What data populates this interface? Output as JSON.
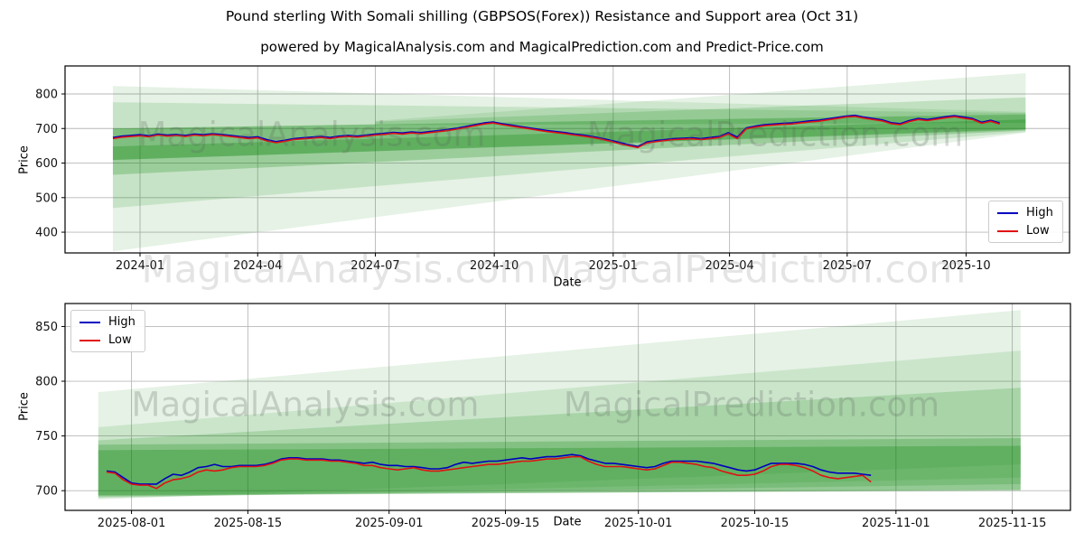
{
  "title": "Pound sterling With Somali shilling (GBPSOS(Forex)) Resistance and Support area (Oct 31)",
  "subtitle": "powered by MagicalAnalysis.com and MagicalPrediction.com and Predict-Price.com",
  "watermarks": {
    "analysis": "MagicalAnalysis.com",
    "prediction": "MagicalPrediction.com"
  },
  "legend": {
    "high": "High",
    "low": "Low"
  },
  "colors": {
    "high": "#0000bf",
    "low": "#e01212",
    "band": "#008000",
    "grid": "#b8b8b8",
    "axis": "#000000",
    "tick_text": "#111111"
  },
  "chart_data": [
    {
      "type": "line",
      "name": "overview-chart",
      "xlabel": "Date",
      "ylabel": "Price",
      "x_domain": [
        "2023-11-04",
        "2025-12-20"
      ],
      "y_domain": [
        340,
        881
      ],
      "x_tick_dates": [
        "2024-01-01",
        "2024-04-01",
        "2024-07-01",
        "2024-10-01",
        "2025-01-01",
        "2025-04-01",
        "2025-07-01",
        "2025-10-01"
      ],
      "x_tick_labels": [
        "2024-01",
        "2024-04",
        "2024-07",
        "2024-10",
        "2025-01",
        "2025-04",
        "2025-07",
        "2025-10"
      ],
      "y_ticks": [
        400,
        500,
        600,
        700,
        800
      ],
      "legend_position": "lower right",
      "grid": true,
      "series_start": "2023-12-11",
      "interval_days": 7,
      "series": [
        {
          "name": "High",
          "color": "#0000bf",
          "values": [
            674,
            678,
            680,
            682,
            679,
            684,
            681,
            683,
            680,
            684,
            682,
            685,
            683,
            680,
            677,
            674,
            676,
            668,
            662,
            666,
            671,
            673,
            675,
            677,
            674,
            678,
            680,
            678,
            681,
            684,
            686,
            689,
            687,
            690,
            688,
            691,
            694,
            697,
            701,
            706,
            711,
            716,
            719,
            714,
            710,
            706,
            702,
            698,
            694,
            691,
            688,
            684,
            681,
            677,
            672,
            666,
            660,
            653,
            648,
            661,
            665,
            668,
            671,
            672,
            673,
            671,
            674,
            677,
            688,
            675,
            702,
            707,
            711,
            713,
            715,
            716,
            719,
            722,
            724,
            728,
            732,
            736,
            738,
            733,
            729,
            725,
            717,
            714,
            723,
            729,
            726,
            730,
            734,
            737,
            733,
            729,
            718,
            724,
            716
          ]
        },
        {
          "name": "Low",
          "color": "#e01212",
          "values": [
            671,
            675,
            677,
            679,
            676,
            681,
            678,
            680,
            677,
            681,
            679,
            682,
            680,
            677,
            674,
            671,
            673,
            664,
            659,
            663,
            668,
            670,
            672,
            674,
            671,
            675,
            677,
            675,
            678,
            681,
            683,
            686,
            684,
            687,
            685,
            688,
            691,
            694,
            698,
            703,
            708,
            713,
            716,
            711,
            707,
            703,
            699,
            695,
            691,
            688,
            685,
            681,
            678,
            674,
            669,
            663,
            656,
            650,
            645,
            658,
            662,
            665,
            668,
            669,
            670,
            668,
            671,
            674,
            684,
            671,
            699,
            704,
            708,
            710,
            712,
            713,
            716,
            719,
            721,
            725,
            729,
            733,
            735,
            730,
            726,
            722,
            714,
            711,
            720,
            726,
            723,
            727,
            731,
            734,
            730,
            726,
            715,
            721,
            713
          ]
        }
      ],
      "bands": [
        {
          "start": "2023-12-11",
          "end": "2025-11-16",
          "bottom": [
            345,
            688
          ],
          "top": [
            823,
            748
          ],
          "opacity": 0.1
        },
        {
          "start": "2023-12-11",
          "end": "2025-11-16",
          "bottom": [
            470,
            690
          ],
          "top": [
            776,
            745
          ],
          "opacity": 0.13
        },
        {
          "start": "2023-12-11",
          "end": "2025-11-16",
          "bottom": [
            566,
            694
          ],
          "top": [
            700,
            742
          ],
          "opacity": 0.22
        },
        {
          "start": "2023-12-11",
          "end": "2025-11-16",
          "bottom": [
            609,
            696
          ],
          "top": [
            700,
            740
          ],
          "opacity": 0.18
        },
        {
          "start": "2023-12-11",
          "end": "2025-11-16",
          "bottom": [
            609,
            698
          ],
          "top": [
            648,
            726
          ],
          "opacity": 0.25
        },
        {
          "start": "2024-07-01",
          "end": "2025-11-16",
          "bottom": [
            712,
            742
          ],
          "top": [
            722,
            860
          ],
          "opacity": 0.1
        },
        {
          "start": "2024-07-01",
          "end": "2025-11-16",
          "bottom": [
            710,
            716
          ],
          "top": [
            720,
            790
          ],
          "opacity": 0.16
        }
      ]
    },
    {
      "type": "line",
      "name": "recent-chart",
      "xlabel": "Date",
      "ylabel": "Price",
      "x_domain": [
        "2025-07-24",
        "2025-11-22"
      ],
      "y_domain": [
        682,
        871
      ],
      "x_tick_dates": [
        "2025-08-01",
        "2025-08-15",
        "2025-09-01",
        "2025-09-15",
        "2025-10-01",
        "2025-10-15",
        "2025-11-01",
        "2025-11-15"
      ],
      "x_tick_labels": [
        "2025-08-01",
        "2025-08-15",
        "2025-09-01",
        "2025-09-15",
        "2025-10-01",
        "2025-10-15",
        "2025-11-01",
        "2025-11-15"
      ],
      "y_ticks": [
        700,
        750,
        800,
        850
      ],
      "legend_position": "upper left",
      "grid": true,
      "series_start": "2025-07-29",
      "interval_days": 1,
      "series": [
        {
          "name": "High",
          "color": "#0000bf",
          "values": [
            718,
            717,
            712,
            707,
            706,
            706,
            706,
            711,
            715,
            714,
            717,
            721,
            722,
            724,
            722,
            722,
            723,
            723,
            723,
            724,
            726,
            729,
            730,
            730,
            729,
            729,
            729,
            728,
            728,
            727,
            726,
            725,
            726,
            724,
            723,
            723,
            722,
            722,
            721,
            720,
            720,
            721,
            724,
            726,
            725,
            726,
            727,
            727,
            728,
            729,
            730,
            729,
            730,
            731,
            731,
            732,
            733,
            732,
            729,
            727,
            725,
            725,
            724,
            723,
            722,
            721,
            722,
            725,
            727,
            727,
            727,
            727,
            726,
            725,
            723,
            721,
            719,
            718,
            719,
            722,
            725,
            725,
            725,
            725,
            724,
            722,
            719,
            717,
            716,
            716,
            716,
            715,
            714
          ]
        },
        {
          "name": "Low",
          "color": "#e01212",
          "values": [
            717,
            716,
            710,
            706,
            705,
            705,
            702,
            707,
            710,
            711,
            713,
            717,
            719,
            718,
            719,
            721,
            722,
            722,
            722,
            723,
            725,
            728,
            729,
            729,
            728,
            728,
            728,
            727,
            727,
            726,
            725,
            723,
            723,
            721,
            720,
            719,
            720,
            721,
            719,
            718,
            718,
            719,
            720,
            721,
            722,
            723,
            724,
            724,
            725,
            726,
            727,
            727,
            728,
            729,
            729,
            730,
            731,
            731,
            727,
            724,
            722,
            722,
            722,
            721,
            720,
            719,
            720,
            723,
            726,
            726,
            725,
            724,
            722,
            721,
            718,
            716,
            714,
            714,
            715,
            718,
            722,
            724,
            724,
            723,
            721,
            718,
            714,
            712,
            711,
            712,
            713,
            714,
            708
          ]
        }
      ],
      "bands": [
        {
          "start": "2025-07-28",
          "end": "2025-11-16",
          "bottom": [
            692,
            724
          ],
          "top": [
            790,
            865
          ],
          "opacity": 0.1
        },
        {
          "start": "2025-07-28",
          "end": "2025-11-16",
          "bottom": [
            693,
            712
          ],
          "top": [
            758,
            828
          ],
          "opacity": 0.11
        },
        {
          "start": "2025-07-28",
          "end": "2025-11-16",
          "bottom": [
            694,
            706
          ],
          "top": [
            746,
            794
          ],
          "opacity": 0.17
        },
        {
          "start": "2025-07-28",
          "end": "2025-11-16",
          "bottom": [
            695,
            701
          ],
          "top": [
            742,
            748
          ],
          "opacity": 0.22
        },
        {
          "start": "2025-07-28",
          "end": "2025-11-16",
          "bottom": [
            696,
            700
          ],
          "top": [
            737,
            741
          ],
          "opacity": 0.26
        }
      ]
    }
  ]
}
